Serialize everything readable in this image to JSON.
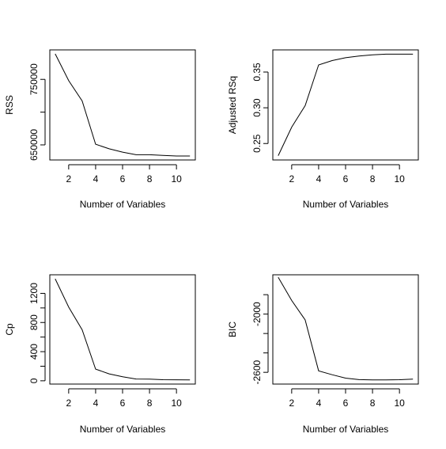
{
  "chart_data": [
    {
      "type": "line",
      "title": "",
      "xlabel": "Number of Variables",
      "ylabel": "RSS",
      "x": [
        1,
        2,
        3,
        4,
        5,
        6,
        7,
        8,
        9,
        10,
        11
      ],
      "series": [
        {
          "values": [
            789000,
            748000,
            717000,
            651000,
            644000,
            639000,
            635000,
            635000,
            634000,
            633000,
            633000
          ]
        }
      ],
      "xlim": [
        0.6,
        11.4
      ],
      "ylim": [
        627000,
        795000
      ],
      "x_ticks": [
        2,
        4,
        6,
        8,
        10
      ],
      "x_tick_labels": [
        "2",
        "4",
        "6",
        "8",
        "10"
      ],
      "y_ticks": [
        650000,
        700000,
        750000
      ],
      "y_tick_labels": [
        "650000",
        "",
        "750000"
      ],
      "grid": false
    },
    {
      "type": "line",
      "title": "",
      "xlabel": "Number of Variables",
      "ylabel": "Adjusted RSq",
      "x": [
        1,
        2,
        3,
        4,
        5,
        6,
        7,
        8,
        9,
        10,
        11
      ],
      "series": [
        {
          "values": [
            0.233,
            0.273,
            0.303,
            0.36,
            0.366,
            0.37,
            0.3725,
            0.374,
            0.375,
            0.375,
            0.375
          ]
        }
      ],
      "xlim": [
        0.6,
        11.4
      ],
      "ylim": [
        0.227,
        0.381
      ],
      "x_ticks": [
        2,
        4,
        6,
        8,
        10
      ],
      "x_tick_labels": [
        "2",
        "4",
        "6",
        "8",
        "10"
      ],
      "y_ticks": [
        0.25,
        0.3,
        0.35
      ],
      "y_tick_labels": [
        "0.25",
        "0.30",
        "0.35"
      ],
      "grid": false
    },
    {
      "type": "line",
      "title": "",
      "xlabel": "Number of Variables",
      "ylabel": "Cp",
      "x": [
        1,
        2,
        3,
        4,
        5,
        6,
        7,
        8,
        9,
        10,
        11
      ],
      "series": [
        {
          "values": [
            1400,
            1010,
            700,
            160,
            95,
            55,
            25,
            22,
            15,
            14,
            12
          ]
        }
      ],
      "xlim": [
        0.6,
        11.4
      ],
      "ylim": [
        -45,
        1455
      ],
      "x_ticks": [
        2,
        4,
        6,
        8,
        10
      ],
      "x_tick_labels": [
        "2",
        "4",
        "6",
        "8",
        "10"
      ],
      "y_ticks": [
        0,
        400,
        800,
        1200
      ],
      "y_tick_labels": [
        "0",
        "400",
        "800",
        "1200"
      ],
      "minor_y_ticks": [
        200,
        600,
        1000
      ],
      "grid": false
    },
    {
      "type": "line",
      "title": "",
      "xlabel": "Number of Variables",
      "ylabel": "BIC",
      "x": [
        1,
        2,
        3,
        4,
        5,
        6,
        7,
        8,
        9,
        10,
        11
      ],
      "series": [
        {
          "values": [
            -1620,
            -1860,
            -2060,
            -2585,
            -2625,
            -2660,
            -2675,
            -2678,
            -2678,
            -2676,
            -2670
          ]
        }
      ],
      "xlim": [
        0.6,
        11.4
      ],
      "ylim": [
        -2721,
        -1595
      ],
      "x_ticks": [
        2,
        4,
        6,
        8,
        10
      ],
      "x_tick_labels": [
        "2",
        "4",
        "6",
        "8",
        "10"
      ],
      "y_ticks": [
        -2600,
        -2000
      ],
      "y_tick_labels": [
        "-2600",
        "-2000"
      ],
      "minor_y_ticks": [
        -1800,
        -2200,
        -2400
      ],
      "grid": false
    }
  ]
}
